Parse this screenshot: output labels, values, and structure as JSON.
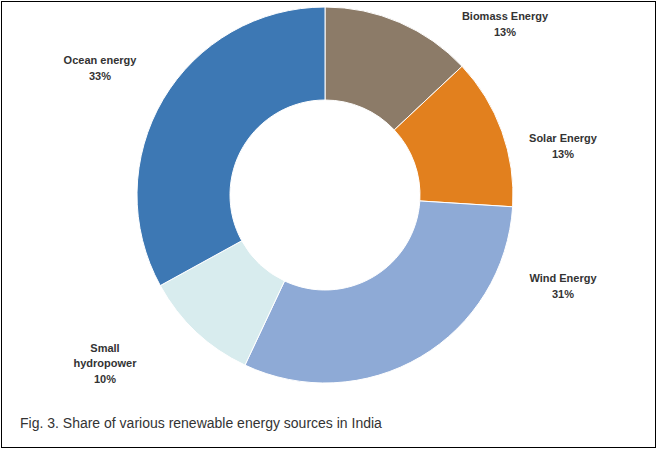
{
  "chart_data": {
    "type": "donut",
    "title": "Fig. 3. Share of various renewable energy sources in India",
    "categories": [
      "Biomass Energy",
      "Solar Energy",
      "Wind Energy",
      "Small hydropower",
      "Ocean energy"
    ],
    "values": [
      13,
      13,
      31,
      10,
      33
    ],
    "value_labels": [
      "13%",
      "13%",
      "31%",
      "10%",
      "33%"
    ],
    "colors": [
      "#8c7b68",
      "#e2801e",
      "#8eaad6",
      "#d8ecee",
      "#3d78b4"
    ],
    "data_labels": true
  }
}
